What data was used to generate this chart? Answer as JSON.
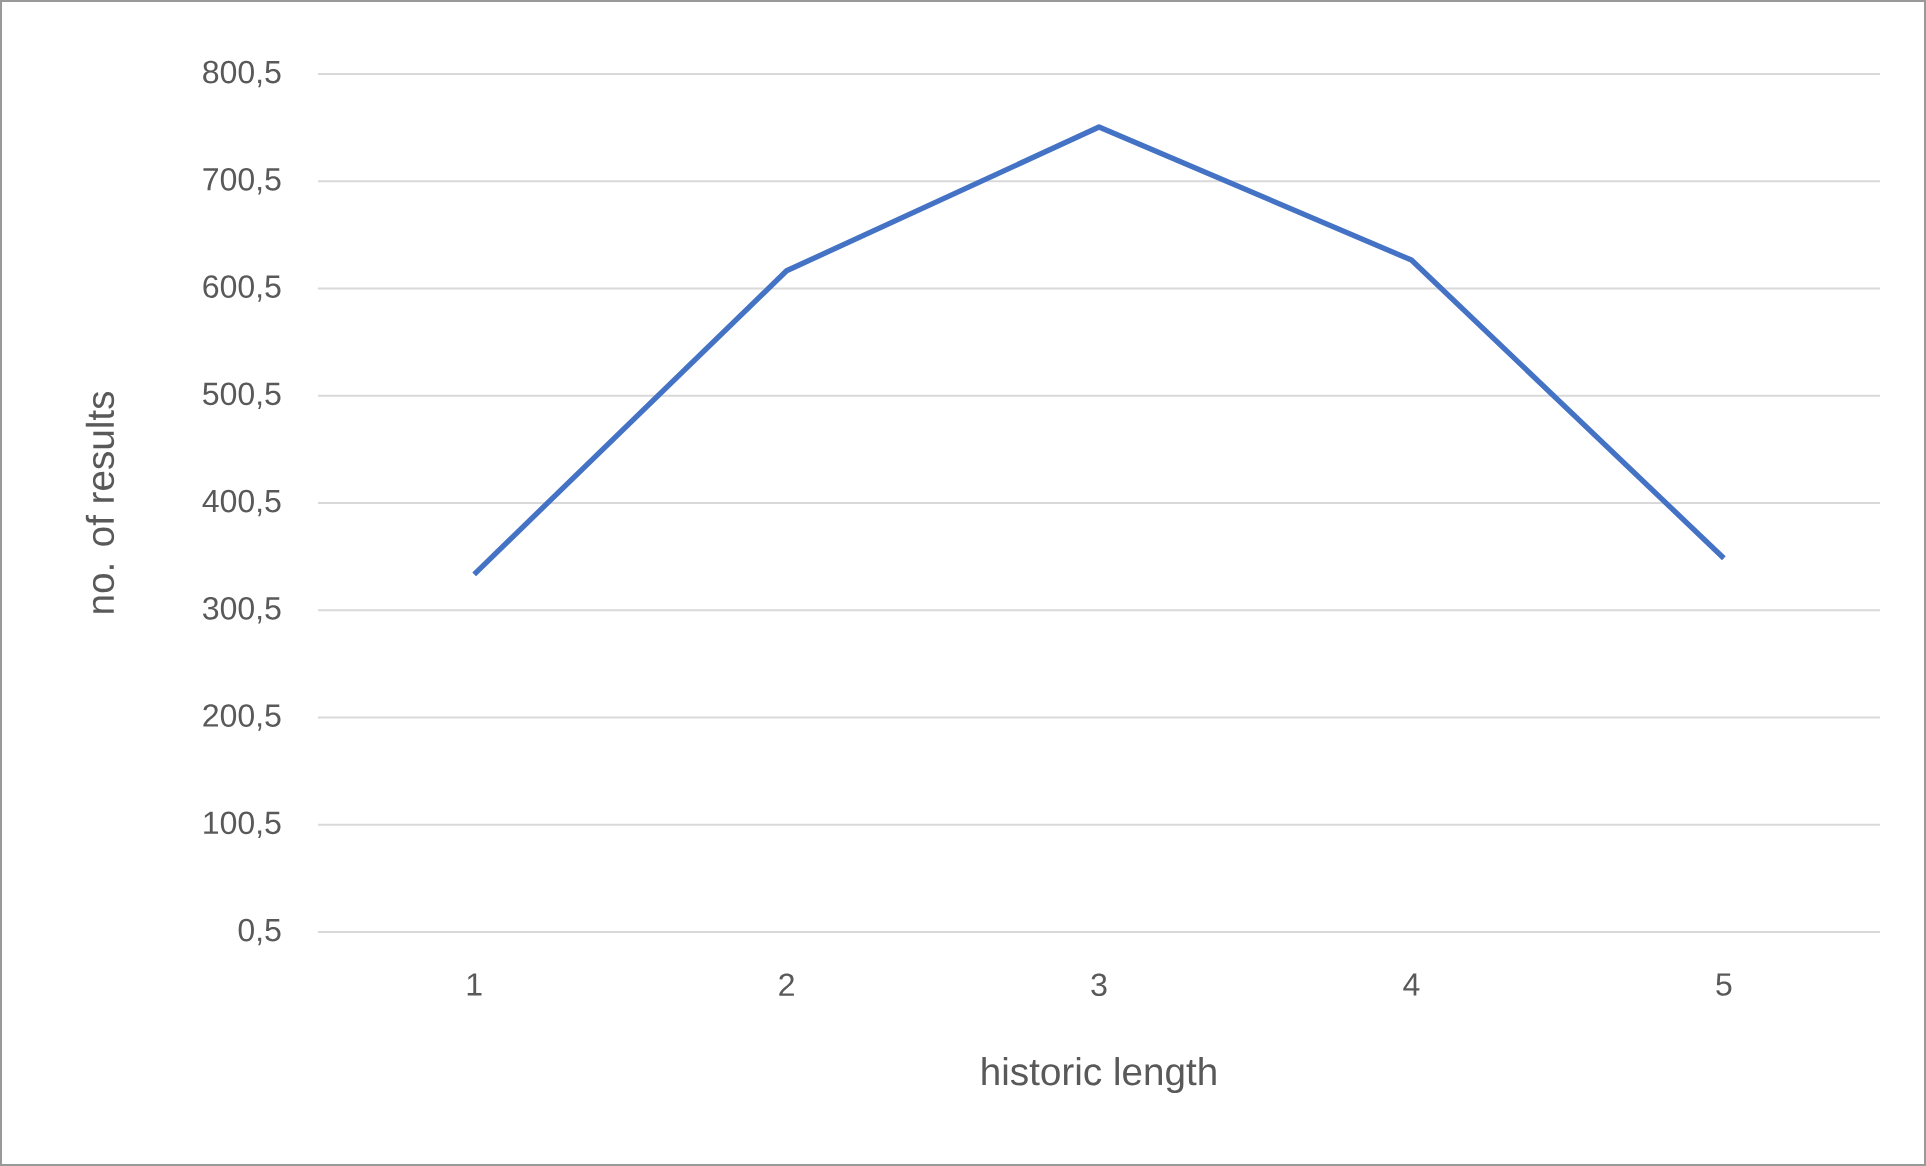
{
  "chart_data": {
    "type": "line",
    "xlabel": "historic length",
    "ylabel": "no. of results",
    "categories": [
      "1",
      "2",
      "3",
      "4",
      "5"
    ],
    "series": [
      {
        "color": "#4472c4",
        "values": [
          334,
          617,
          751,
          627,
          349
        ]
      }
    ],
    "ylim": [
      0.5,
      800.5
    ],
    "yticks": [
      {
        "value": 0.5,
        "label": "0,5"
      },
      {
        "value": 100.5,
        "label": "100,5"
      },
      {
        "value": 200.5,
        "label": "200,5"
      },
      {
        "value": 300.5,
        "label": "300,5"
      },
      {
        "value": 400.5,
        "label": "400,5"
      },
      {
        "value": 500.5,
        "label": "500,5"
      },
      {
        "value": 600.5,
        "label": "600,5"
      },
      {
        "value": 700.5,
        "label": "700,5"
      },
      {
        "value": 800.5,
        "label": "800,5"
      }
    ],
    "grid": "y",
    "marker": "none",
    "line_style": "solid"
  }
}
